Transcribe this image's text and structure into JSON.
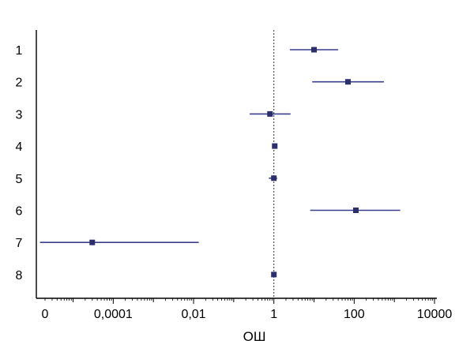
{
  "chart_data": {
    "type": "scatter",
    "subtype": "forest-plot",
    "title": "",
    "xlabel": "ОШ",
    "ylabel": "",
    "xscale": "log",
    "xlim": [
      2e-06,
      10000
    ],
    "x_tick_labels": [
      "0",
      "0,0001",
      "0,01",
      "1",
      "100",
      "10000"
    ],
    "x_tick_values": [
      1e-06,
      0.0001,
      0.01,
      1,
      100,
      10000
    ],
    "reference_line": 1,
    "categories": [
      "1",
      "2",
      "3",
      "4",
      "5",
      "6",
      "7",
      "8"
    ],
    "points": [
      {
        "label": "1",
        "value": 10,
        "ci_low": 2.5,
        "ci_high": 40
      },
      {
        "label": "2",
        "value": 70,
        "ci_low": 9,
        "ci_high": 550
      },
      {
        "label": "3",
        "value": 0.8,
        "ci_low": 0.25,
        "ci_high": 2.6
      },
      {
        "label": "4",
        "value": 1.05,
        "ci_low": 1.05,
        "ci_high": 1.05
      },
      {
        "label": "5",
        "value": 1.0,
        "ci_low": 0.75,
        "ci_high": 1.2
      },
      {
        "label": "6",
        "value": 110,
        "ci_low": 8,
        "ci_high": 1400
      },
      {
        "label": "7",
        "value": 3e-05,
        "ci_low": 1.5e-06,
        "ci_high": 0.0135
      },
      {
        "label": "8",
        "value": 1.0,
        "ci_low": 1.0,
        "ci_high": 1.0
      }
    ],
    "colors": {
      "marker": "#2b2f6b",
      "ci_line": "#3a3f8f",
      "axis": "#000000",
      "reference_line": "#333333"
    },
    "grid": false,
    "legend": "none"
  }
}
